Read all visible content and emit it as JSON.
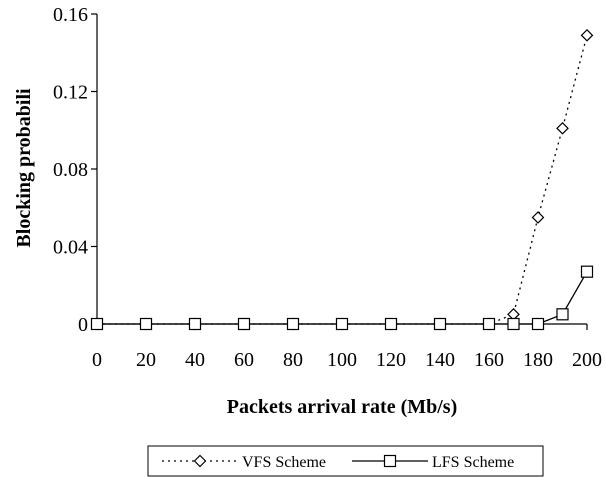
{
  "chart_data": {
    "type": "line",
    "title": "",
    "xlabel": "Packets arrival rate (Mb/s)",
    "ylabel": "Blocking probabili",
    "x": [
      0,
      20,
      40,
      60,
      80,
      100,
      120,
      140,
      160,
      170,
      180,
      190,
      200
    ],
    "xticks": [
      "0",
      "20",
      "40",
      "60",
      "80",
      "100",
      "120",
      "140",
      "160",
      "180",
      "200"
    ],
    "yticks": [
      "0",
      "0.04",
      "0.08",
      "0.12",
      "0.16"
    ],
    "xlim": [
      0,
      200
    ],
    "ylim": [
      0,
      0.16
    ],
    "grid": false,
    "legend_position": "bottom",
    "series": [
      {
        "name": "VFS Scheme",
        "marker": "diamond",
        "line_style": "dotted",
        "values": [
          0,
          0,
          0,
          0,
          0,
          0,
          0,
          0,
          0,
          0.005,
          0.055,
          0.101,
          0.149
        ]
      },
      {
        "name": "LFS Scheme",
        "marker": "square",
        "line_style": "solid",
        "values": [
          0,
          0,
          0,
          0,
          0,
          0,
          0,
          0,
          0,
          0,
          0,
          0.005,
          0.027
        ]
      }
    ]
  }
}
